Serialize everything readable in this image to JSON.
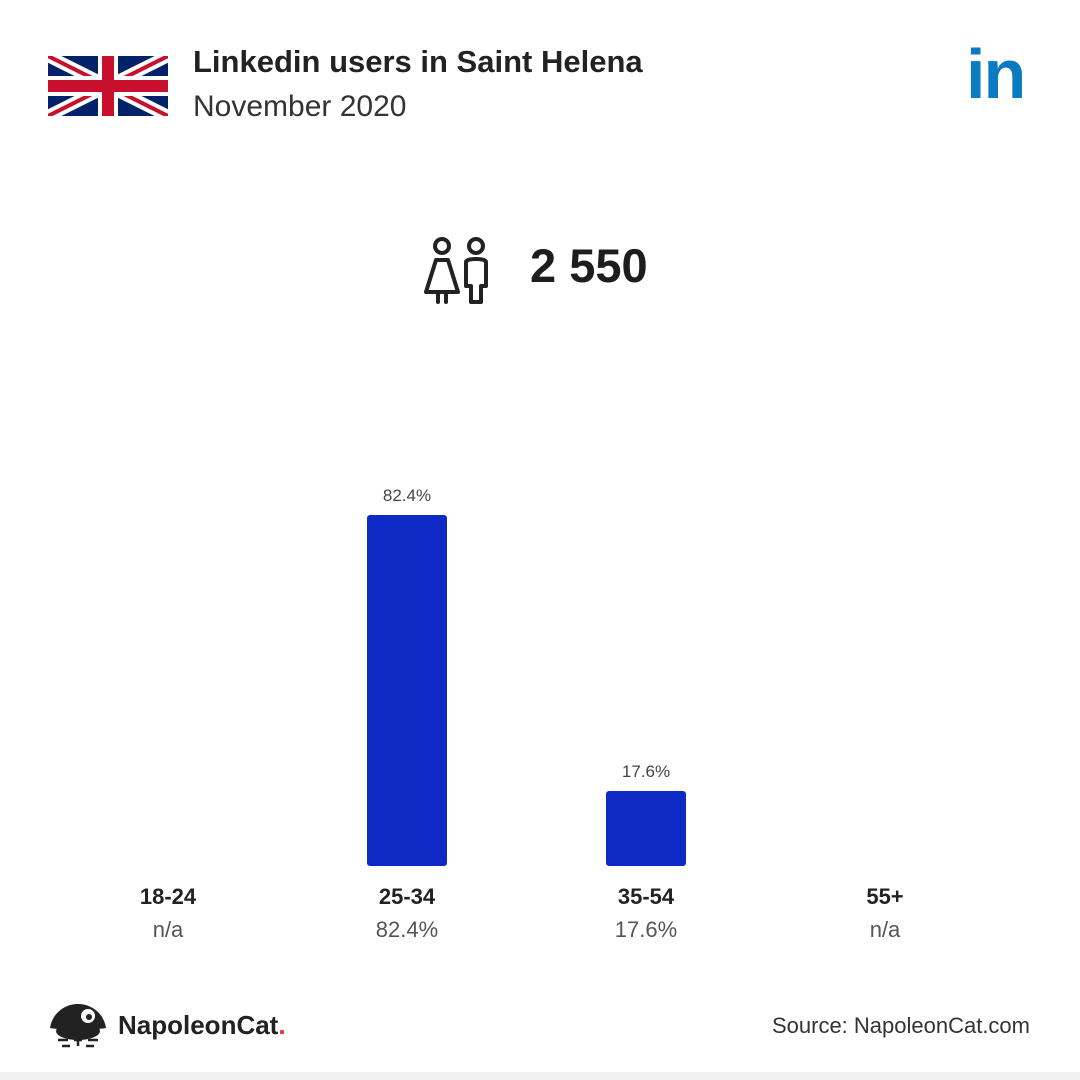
{
  "header": {
    "title": "Linkedin users in Saint Helena",
    "subtitle": "November 2020",
    "flag_icon": "uk-flag-icon",
    "logo_icon": "linkedin-logo-icon",
    "logo_text": "in"
  },
  "total": {
    "icon": "people-icon",
    "value": "2 550"
  },
  "chart_data": {
    "type": "bar",
    "categories": [
      "18-24",
      "25-34",
      "35-54",
      "55+"
    ],
    "values": [
      null,
      82.4,
      17.6,
      null
    ],
    "bar_labels": [
      "",
      "82.4%",
      "17.6%",
      ""
    ],
    "value_labels": [
      "n/a",
      "82.4%",
      "17.6%",
      "n/a"
    ],
    "unit": "%",
    "ylim": [
      0,
      100
    ],
    "grid": false,
    "bar_color": "#0f2ac4"
  },
  "footer": {
    "brand_name": "NapoleonCat",
    "brand_dot": ".",
    "brand_icon": "napoleoncat-logo-icon",
    "source": "Source: NapoleonCat.com"
  },
  "colors": {
    "linkedin_blue": "#0a7bc2",
    "bar_blue": "#0f2ac4",
    "accent_red": "#e0312a"
  }
}
